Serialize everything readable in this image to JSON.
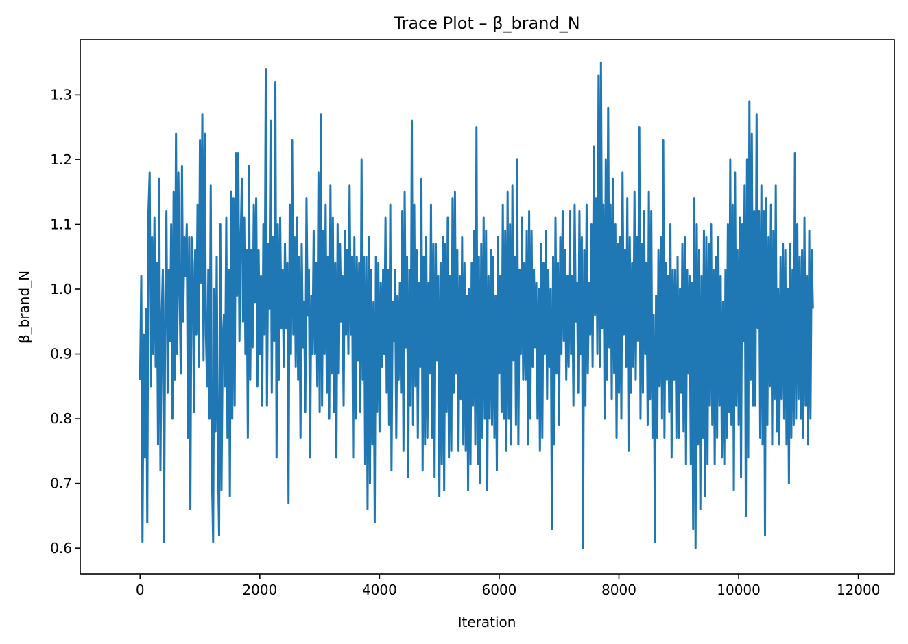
{
  "chart_data": {
    "type": "line",
    "title": "Trace Plot – β_brand_N",
    "xlabel": "Iteration",
    "ylabel": "β_brand_N",
    "xlim": [
      -1000,
      12600
    ],
    "ylim": [
      0.56,
      1.385
    ],
    "xticks": [
      0,
      2000,
      4000,
      6000,
      8000,
      10000,
      12000
    ],
    "xtick_labels": [
      "0",
      "2000",
      "4000",
      "6000",
      "8000",
      "10000",
      "12000"
    ],
    "yticks": [
      0.6,
      0.7,
      0.8,
      0.9,
      1.0,
      1.1,
      1.2,
      1.3
    ],
    "ytick_labels": [
      "0.6",
      "0.7",
      "0.8",
      "0.9",
      "1.0",
      "1.1",
      "1.2",
      "1.3"
    ],
    "grid": false,
    "legend": "none",
    "series": [
      {
        "color": "#1f77b4",
        "x_start": 0,
        "x_step": 20,
        "count": 601,
        "mean": 0.93,
        "sd": 0.12,
        "ymin": 0.597,
        "ymax": 1.348,
        "values": [
          0.86,
          1.02,
          0.61,
          0.93,
          0.74,
          0.97,
          0.64,
          1.12,
          1.18,
          0.85,
          1.08,
          0.9,
          1.11,
          0.88,
          1.04,
          0.76,
          1.17,
          0.72,
          0.95,
          1.03,
          0.61,
          0.98,
          1.12,
          0.84,
          1.03,
          0.92,
          1.1,
          0.8,
          1.15,
          0.86,
          1.24,
          0.9,
          1.18,
          1.0,
          0.87,
          1.19,
          0.95,
          1.08,
          1.02,
          1.1,
          0.77,
          1.08,
          0.66,
          1.08,
          1.04,
          0.81,
          1.06,
          0.93,
          1.13,
          0.88,
          1.23,
          1.01,
          1.27,
          0.89,
          1.24,
          0.93,
          0.85,
          1.03,
          0.8,
          1.16,
          0.72,
          0.61,
          1.0,
          0.78,
          1.05,
          0.74,
          0.62,
          1.1,
          0.69,
          0.92,
          0.96,
          0.85,
          1.11,
          0.77,
          1.03,
          0.68,
          1.15,
          0.8,
          1.14,
          0.82,
          1.21,
          0.99,
          1.21,
          0.92,
          1.07,
          1.17,
          0.95,
          1.11,
          0.9,
          1.06,
          0.77,
          1.19,
          0.86,
          1.06,
          0.91,
          1.13,
          0.98,
          1.14,
          0.85,
          1.06,
          0.9,
          1.02,
          0.82,
          1.1,
          0.93,
          1.34,
          0.82,
          1.07,
          0.97,
          1.26,
          0.84,
          1.08,
          0.92,
          1.32,
          0.74,
          1.1,
          0.86,
          1.11,
          0.94,
          1.03,
          0.88,
          1.07,
          0.94,
          1.04,
          0.67,
          1.13,
          0.9,
          1.23,
          0.93,
          1.08,
          0.88,
          1.11,
          0.86,
          1.05,
          0.77,
          1.07,
          0.91,
          0.98,
          0.81,
          1.14,
          0.96,
          1.03,
          0.74,
          0.99,
          0.9,
          1.09,
          0.9,
          1.04,
          0.85,
          1.18,
          0.81,
          1.27,
          0.82,
          1.09,
          0.9,
          1.13,
          0.84,
          1.05,
          0.8,
          1.16,
          0.87,
          1.11,
          0.81,
          1.04,
          0.74,
          1.1,
          0.87,
          1.07,
          0.95,
          1.02,
          0.82,
          1.09,
          0.93,
          1.06,
          0.9,
          1.16,
          0.93,
          1.05,
          0.74,
          1.08,
          0.8,
          1.05,
          0.89,
          1.04,
          0.81,
          1.2,
          0.86,
          1.05,
          0.73,
          1.05,
          0.66,
          1.08,
          0.7,
          1.03,
          0.76,
          0.98,
          0.64,
          1.05,
          0.81,
          1.04,
          0.78,
          1.01,
          0.88,
          1.03,
          0.9,
          1.11,
          0.84,
          1.03,
          0.79,
          1.13,
          0.72,
          0.98,
          0.92,
          1.03,
          0.77,
          0.99,
          0.86,
          1.01,
          0.84,
          1.12,
          0.75,
          1.15,
          0.91,
          1.05,
          0.71,
          1.03,
          0.82,
          1.26,
          0.79,
          1.13,
          0.85,
          1.06,
          0.77,
          1.01,
          0.88,
          1.17,
          0.72,
          1.05,
          0.76,
          1.08,
          0.77,
          1.01,
          0.87,
          1.13,
          0.77,
          1.07,
          0.71,
          1.07,
          0.89,
          1.02,
          0.68,
          1.04,
          0.73,
          1.08,
          0.69,
          1.07,
          0.81,
          1.11,
          0.74,
          1.02,
          0.75,
          1.14,
          0.84,
          1.15,
          0.87,
          1.06,
          0.75,
          1.02,
          0.83,
          1.08,
          0.76,
          1.04,
          0.75,
          0.99,
          0.69,
          1.0,
          0.73,
          1.04,
          0.82,
          1.09,
          0.76,
          1.25,
          0.73,
          1.05,
          0.7,
          1.07,
          0.77,
          1.11,
          0.8,
          1.09,
          0.69,
          1.02,
          0.8,
          1.06,
          0.79,
          1.05,
          0.77,
          0.99,
          0.72,
          1.08,
          0.87,
          1.02,
          0.81,
          1.13,
          0.8,
          1.09,
          0.75,
          1.15,
          0.8,
          1.1,
          0.76,
          1.16,
          0.89,
          1.05,
          0.79,
          1.2,
          0.76,
          1.03,
          0.9,
          1.11,
          0.86,
          1.04,
          0.86,
          1.09,
          0.76,
          1.12,
          0.8,
          1.09,
          0.88,
          1.03,
          0.91,
          1.01,
          0.8,
          1.0,
          0.75,
          1.07,
          0.77,
          1.04,
          0.9,
          1.09,
          0.83,
          1.03,
          0.88,
          1.0,
          0.63,
          1.05,
          0.76,
          1.11,
          0.87,
          1.04,
          0.79,
          1.08,
          0.9,
          1.12,
          0.92,
          1.06,
          0.86,
          1.02,
          0.88,
          1.12,
          0.9,
          1.02,
          0.82,
          1.13,
          0.95,
          1.01,
          0.84,
          1.12,
          0.9,
          1.08,
          0.6,
          1.06,
          0.82,
          1.13,
          0.87,
          1.01,
          0.93,
          1.1,
          0.88,
          1.22,
          0.96,
          1.14,
          0.9,
          1.33,
          0.88,
          1.35,
          0.94,
          1.13,
          0.8,
          1.2,
          0.86,
          1.28,
          0.91,
          1.13,
          0.83,
          1.17,
          0.87,
          1.1,
          0.77,
          1.07,
          0.84,
          1.08,
          0.8,
          1.18,
          0.93,
          1.06,
          0.88,
          1.14,
          0.75,
          1.08,
          0.84,
          1.04,
          0.88,
          1.15,
          0.86,
          1.08,
          0.92,
          1.25,
          0.8,
          1.07,
          0.84,
          1.12,
          0.9,
          1.04,
          0.79,
          1.15,
          0.83,
          1.12,
          0.77,
          0.96,
          0.61,
          0.99,
          0.77,
          1.06,
          0.85,
          1.08,
          0.8,
          1.23,
          0.77,
          1.04,
          0.86,
          1.02,
          0.81,
          1.1,
          0.74,
          1.03,
          0.86,
          1.03,
          0.77,
          1.05,
          0.77,
          1.0,
          0.84,
          1.07,
          0.78,
          1.08,
          0.73,
          1.03,
          0.87,
          1.02,
          0.73,
          1.01,
          0.63,
          1.14,
          0.6,
          1.1,
          0.76,
          1.06,
          0.66,
          1.02,
          0.77,
          1.09,
          0.68,
          1.08,
          0.73,
          1.07,
          0.82,
          1.1,
          0.79,
          1.03,
          0.73,
          1.05,
          0.77,
          1.08,
          0.82,
          1.02,
          0.74,
          0.98,
          0.73,
          1.03,
          0.77,
          1.1,
          0.81,
          1.2,
          0.79,
          1.13,
          0.69,
          1.18,
          0.82,
          1.06,
          0.79,
          1.11,
          0.71,
          1.1,
          0.92,
          1.16,
          0.65,
          1.2,
          0.74,
          1.29,
          0.86,
          1.24,
          0.82,
          1.12,
          0.82,
          1.27,
          0.94,
          1.12,
          0.77,
          1.16,
          0.76,
          1.12,
          0.62,
          1.14,
          0.79,
          1.08,
          0.85,
          1.13,
          0.76,
          1.09,
          0.83,
          1.16,
          0.78,
          1.0,
          0.76,
          1.05,
          0.83,
          1.07,
          0.8,
          1.06,
          0.76,
          1.0,
          0.7,
          1.07,
          0.77,
          1.03,
          0.79,
          1.21,
          0.8,
          1.1,
          0.83,
          1.05,
          0.8,
          1.06,
          0.77,
          1.11,
          0.82,
          1.02,
          0.76,
          1.09,
          0.8,
          1.06,
          0.97
        ]
      }
    ]
  }
}
